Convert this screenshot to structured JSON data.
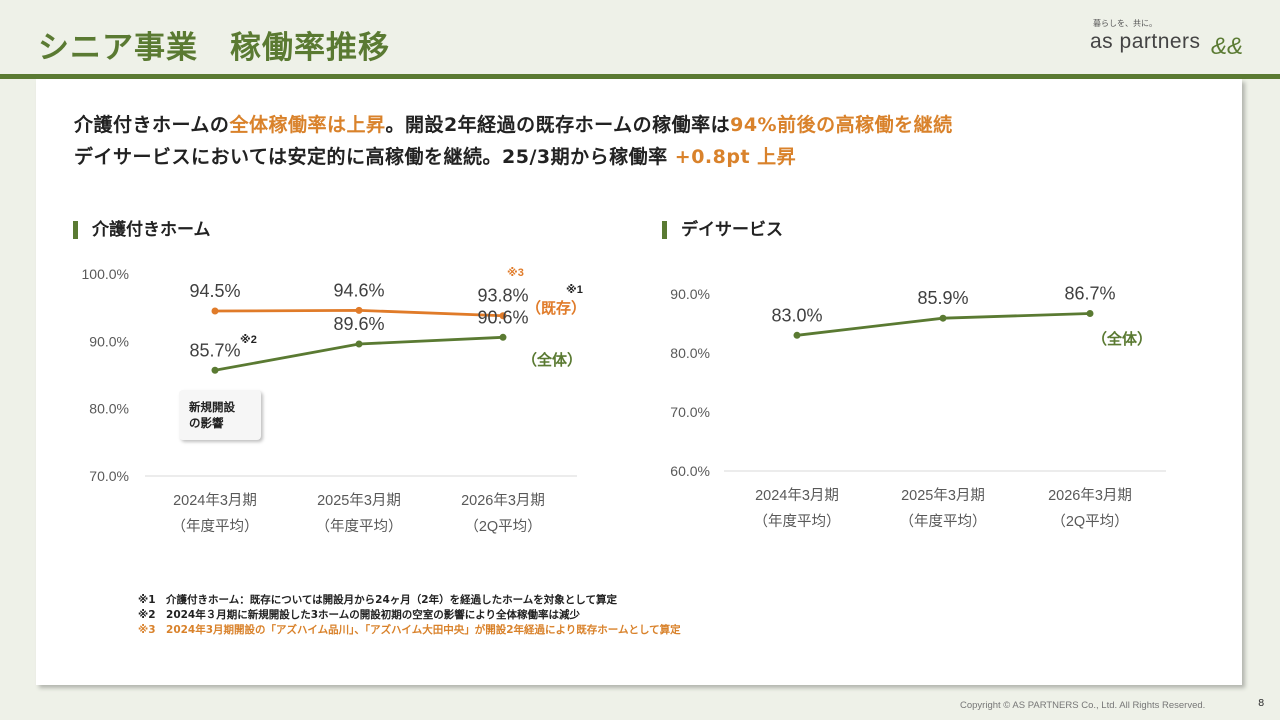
{
  "header": {
    "title": "シニア事業　稼働率推移"
  },
  "logo": {
    "tagline": "暮らしを、共に。",
    "name": "as partners",
    "mark": "&&"
  },
  "headline": {
    "line1": [
      "介護付きホームの",
      "全体稼働率は上昇",
      "。開設2年経過の既存ホームの稼働率は",
      "94%前後の高稼働を継続"
    ],
    "line2": [
      "デイサービスにおいては安定的に高稼働を継続。25/3期から稼働率 ",
      "+0.8pt 上昇"
    ]
  },
  "colors": {
    "green": "#5a7a32",
    "orange": "#e07b29",
    "highlight": "#d9822b"
  },
  "chart_data": [
    {
      "type": "line",
      "title": "介護付きホーム",
      "categories": [
        "2024年3月期",
        "2025年3月期",
        "2026年3月期"
      ],
      "category_sublabels": [
        "（年度平均）",
        "（年度平均）",
        "（2Q平均）"
      ],
      "yticks": [
        "100.0%",
        "90.0%",
        "80.0%",
        "70.0%"
      ],
      "ylim": [
        70,
        100
      ],
      "grid": false,
      "series": [
        {
          "name": "（既存）",
          "color": "#e07b29",
          "values": [
            94.5,
            94.6,
            93.8
          ],
          "labels": [
            "94.5%",
            "94.6%",
            "93.8%"
          ]
        },
        {
          "name": "（全体）",
          "color": "#5a7a32",
          "values": [
            85.7,
            89.6,
            90.6
          ],
          "labels": [
            "85.7%",
            "89.6%",
            "90.6%"
          ]
        }
      ],
      "annotations": {
        "n1": "※1",
        "n2": "※2",
        "n3": "※3",
        "callout": "新規開設\nの影響"
      }
    },
    {
      "type": "line",
      "title": "デイサービス",
      "categories": [
        "2024年3月期",
        "2025年3月期",
        "2026年3月期"
      ],
      "category_sublabels": [
        "（年度平均）",
        "（年度平均）",
        "（2Q平均）"
      ],
      "yticks": [
        "90.0%",
        "80.0%",
        "70.0%",
        "60.0%"
      ],
      "ylim": [
        60,
        90
      ],
      "grid": false,
      "series": [
        {
          "name": "（全体）",
          "color": "#5a7a32",
          "values": [
            83.0,
            85.9,
            86.7
          ],
          "labels": [
            "83.0%",
            "85.9%",
            "86.7%"
          ]
        }
      ]
    }
  ],
  "notes": [
    "※1　介護付きホーム：既存については開設月から24ヶ月（2年）を経過したホームを対象として算定",
    "※2　2024年３月期に新規開設した3ホームの開設初期の空室の影響により全体稼働率は減少",
    "※3　2024年3月期開設の「アズハイム品川」、「アズハイム大田中央」が開設2年経過により既存ホームとして算定"
  ],
  "footer": {
    "copyright": "Copyright © AS PARTNERS Co., Ltd. All Rights Reserved.",
    "page": "8"
  }
}
